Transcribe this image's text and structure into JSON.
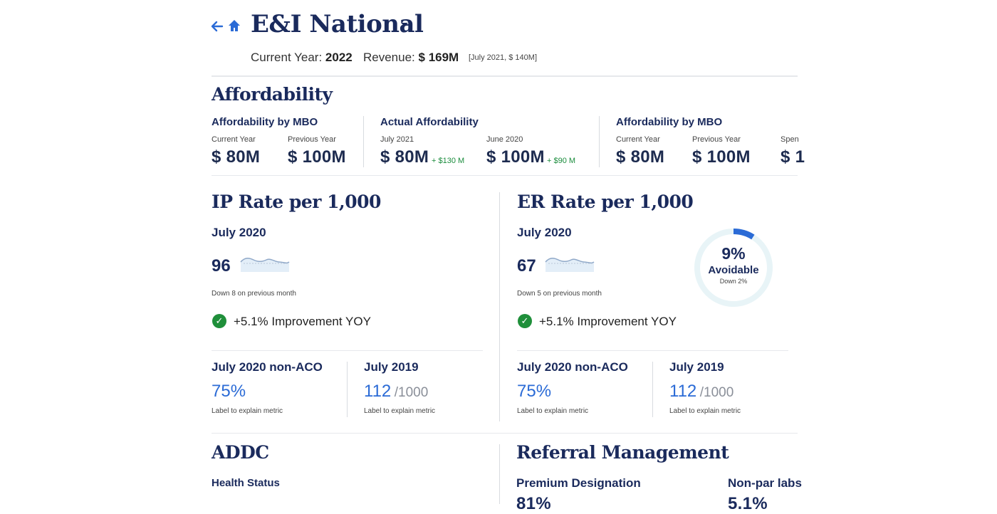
{
  "header": {
    "title": "E&I National",
    "current_year_label": "Current Year:",
    "current_year_value": "2022",
    "revenue_label": "Revenue:",
    "revenue_value": "$ 169M",
    "revenue_previous": "[July 2021, $ 140M]"
  },
  "affordability": {
    "section_title": "Affordability",
    "mbo1": {
      "title": "Affordability by MBO",
      "current_label": "Current Year",
      "current_value": "$ 80M",
      "previous_label": "Previous Year",
      "previous_value": "$ 100M"
    },
    "actual": {
      "title": "Actual Affordability",
      "a_label": "July 2021",
      "a_value": "$ 80M",
      "a_delta": "+ $130 M",
      "b_label": "June 2020",
      "b_value": "$ 100M",
      "b_delta": "+ $90 M"
    },
    "mbo2": {
      "title": "Affordability by MBO",
      "current_label": "Current Year",
      "current_value": "$ 80M",
      "previous_label": "Previous Year",
      "previous_value": "$ 100M",
      "third_label": "Spen",
      "third_value": "$ 1"
    }
  },
  "ip_rate": {
    "title": "IP Rate per 1,000",
    "period": "July 2020",
    "value": "96",
    "change_note": "Down 8 on previous month",
    "improvement": "+5.1% Improvement YOY",
    "non_aco_label": "July 2020 non-ACO",
    "non_aco_value": "75%",
    "non_aco_note": "Label to explain metric",
    "prev_label": "July 2019",
    "prev_value": "112",
    "prev_of": "/1000",
    "prev_note": "Label to explain metric"
  },
  "er_rate": {
    "title": "ER Rate per 1,000",
    "period": "July 2020",
    "value": "67",
    "change_note": "Down 5 on previous month",
    "improvement": "+5.1% Improvement YOY",
    "donut_value": "9%",
    "donut_percent": 9,
    "donut_label": "Avoidable",
    "donut_note": "Down 2%",
    "non_aco_label": "July 2020 non-ACO",
    "non_aco_value": "75%",
    "non_aco_note": "Label to explain metric",
    "prev_label": "July 2019",
    "prev_value": "112",
    "prev_of": "/1000",
    "prev_note": "Label to explain metric"
  },
  "addc": {
    "title": "ADDC",
    "health_status_label": "Health Status"
  },
  "referral": {
    "title": "Referral Management",
    "premium_label": "Premium Designation",
    "premium_value": "81%",
    "nonpar_label": "Non-par labs",
    "nonpar_value": "5.1%"
  },
  "colors": {
    "accent": "#2b6bd6",
    "navy": "#1a2a5c",
    "success": "#1f8f3a",
    "donut_track": "#e8f4f7"
  }
}
